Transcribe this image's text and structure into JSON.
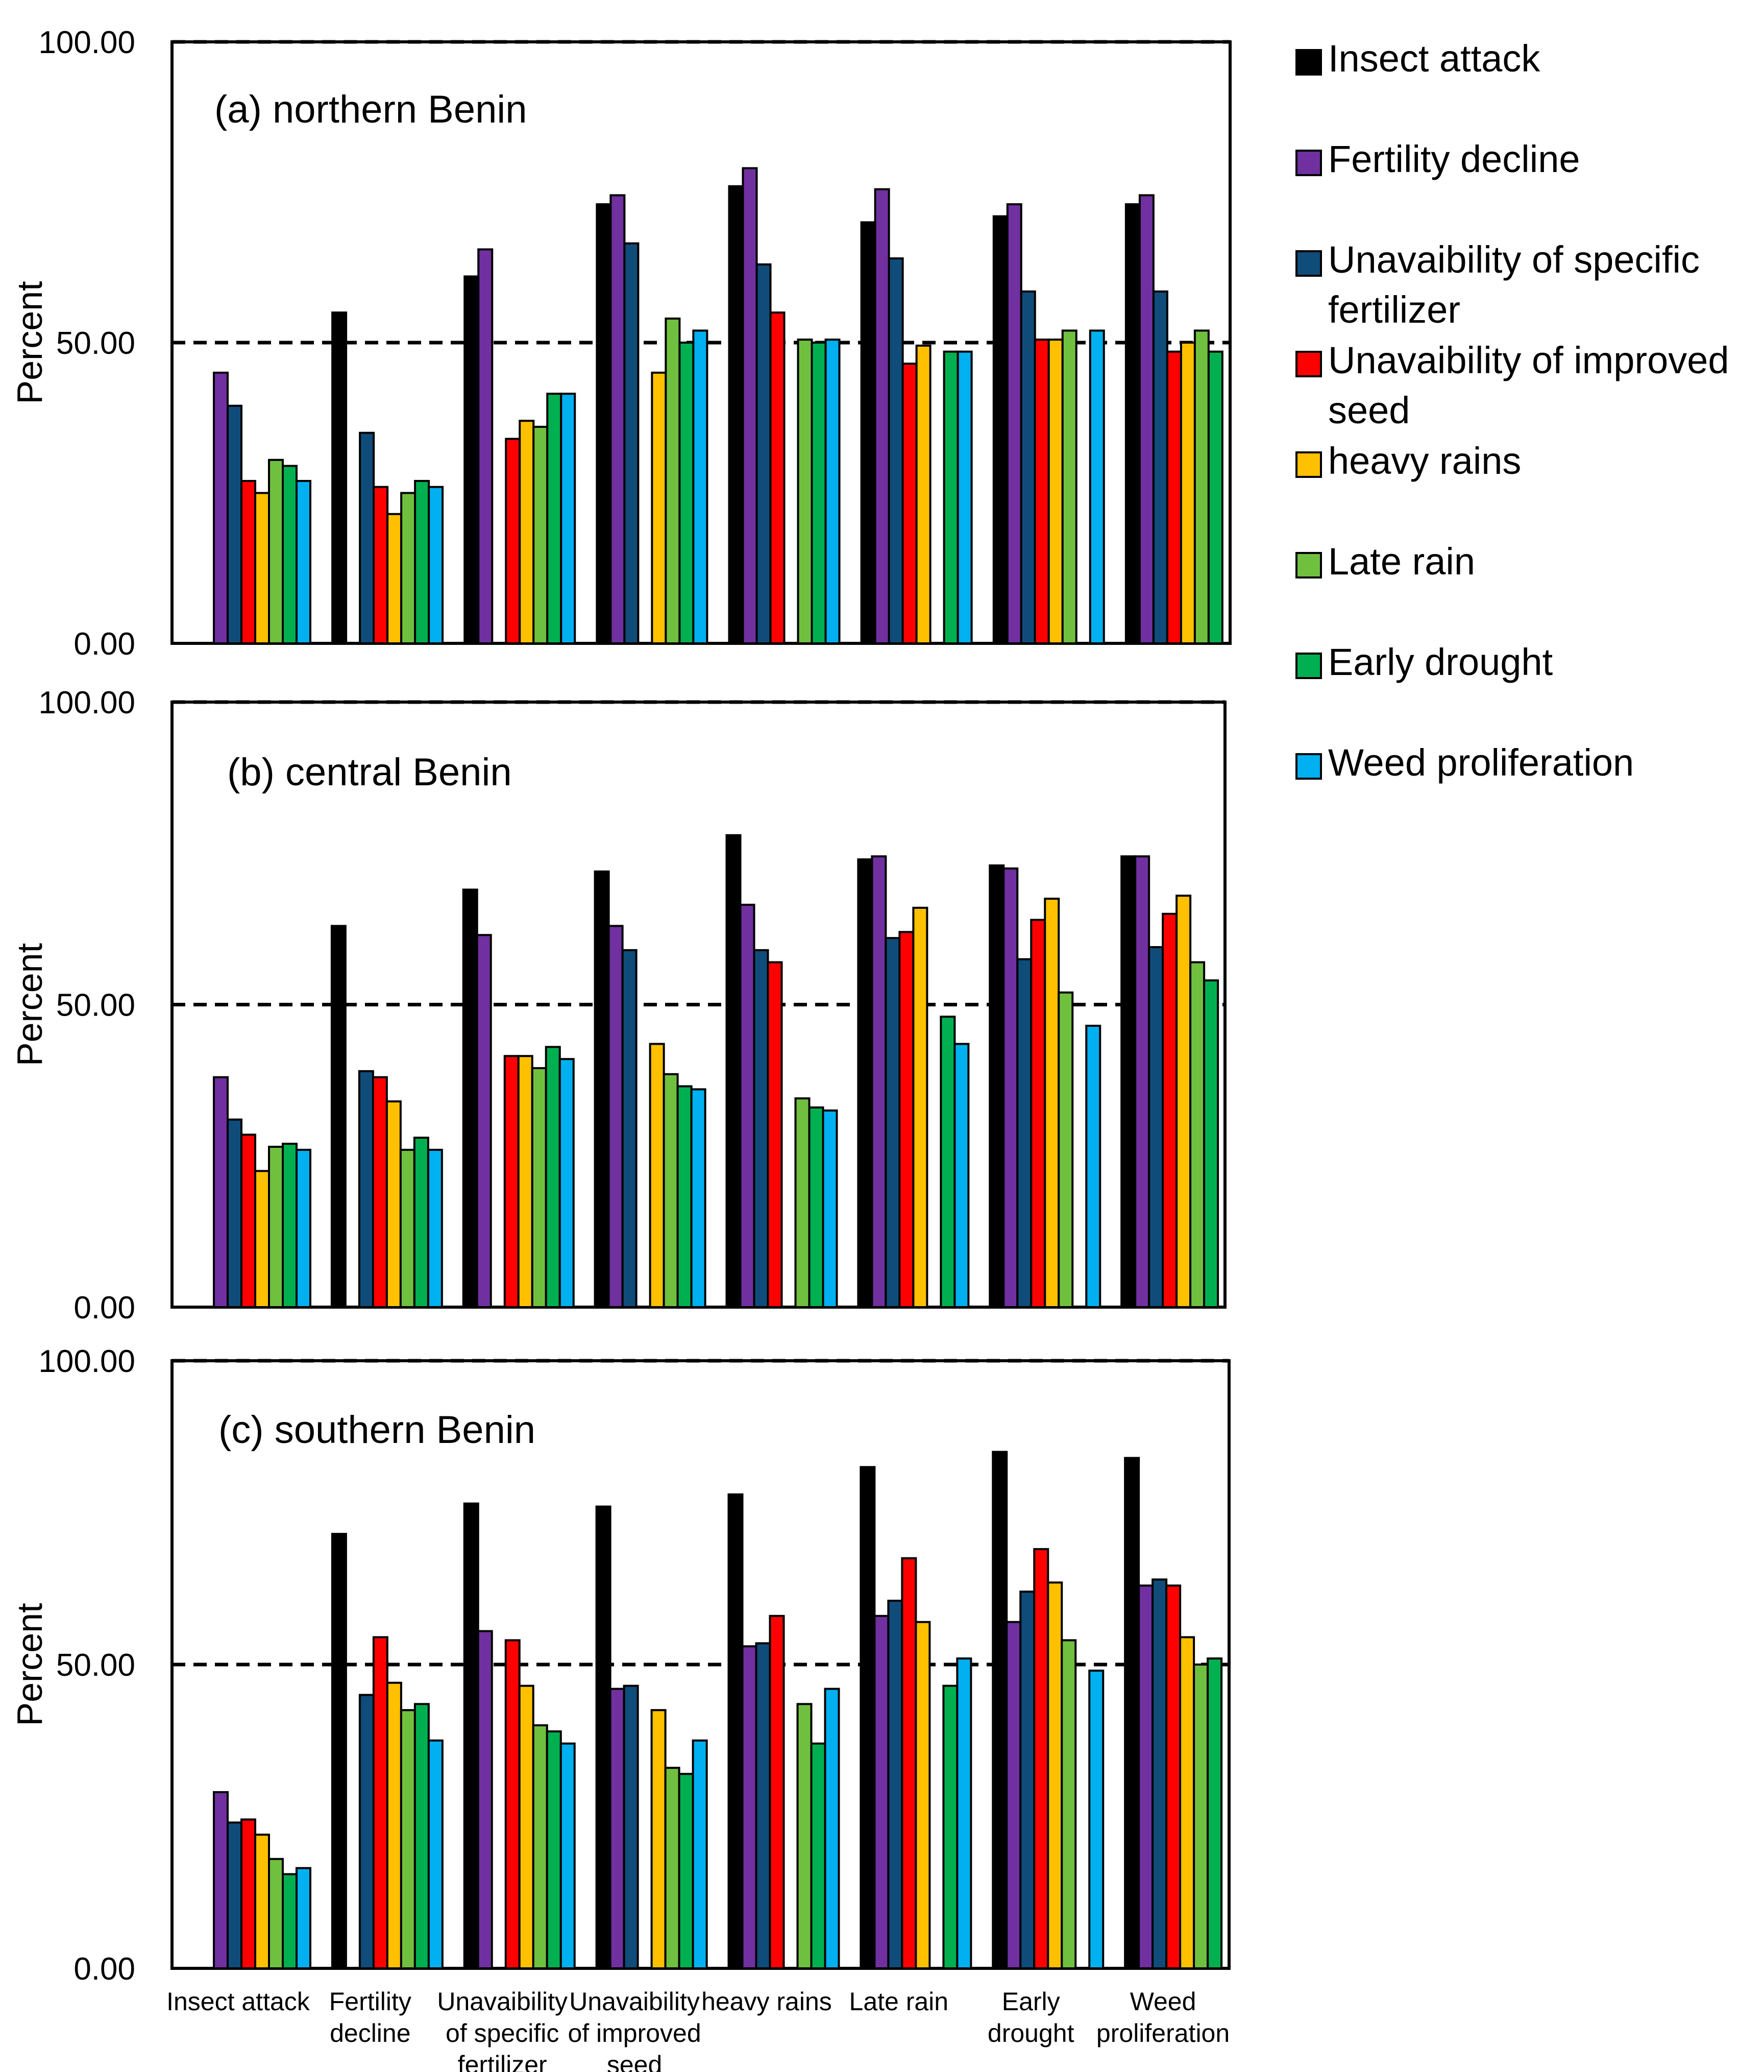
{
  "chart_data": [
    {
      "type": "bar",
      "panel_label": "(a)  northern Benin",
      "ylabel": "Percent",
      "ylim": [
        0,
        100
      ],
      "yticks": [
        "0.00",
        "50.00",
        "100.00"
      ],
      "reference_lines": [
        50,
        100
      ],
      "categories": [
        "Insect attack",
        "Fertility decline",
        "Unavaibility of specific fertilizer",
        "Unavaibility of improved seed",
        "heavy rains",
        "Late rain",
        "Early drought",
        "Weed proliferation"
      ],
      "series": [
        {
          "name": "Insect attack",
          "values": [
            null,
            55,
            61,
            73,
            76,
            70,
            71,
            73
          ]
        },
        {
          "name": "Fertility decline",
          "values": [
            45,
            null,
            65.5,
            74.5,
            79,
            75.5,
            73,
            74.5
          ]
        },
        {
          "name": "Unavaibility of specific fertilizer",
          "values": [
            39.5,
            35,
            null,
            66.5,
            63,
            64,
            58.5,
            58.5
          ]
        },
        {
          "name": "Unavaibility of improved seed",
          "values": [
            27,
            26,
            34,
            null,
            55,
            46.5,
            50.5,
            48.5
          ]
        },
        {
          "name": "heavy rains",
          "values": [
            25,
            21.5,
            37,
            45,
            null,
            49.5,
            50.5,
            50
          ]
        },
        {
          "name": "Late rain",
          "values": [
            30.5,
            25,
            36,
            54,
            50.5,
            null,
            52,
            52
          ]
        },
        {
          "name": "Early drought",
          "values": [
            29.5,
            27,
            41.5,
            50,
            50,
            48.5,
            null,
            48.5
          ]
        },
        {
          "name": "Weed proliferation",
          "values": [
            27,
            26,
            41.5,
            52,
            50.5,
            48.5,
            52,
            null
          ]
        }
      ]
    },
    {
      "type": "bar",
      "panel_label": "(b)   central Benin",
      "ylabel": "Percent",
      "ylim": [
        0,
        100
      ],
      "yticks": [
        "0.00",
        "50.00",
        "100.00"
      ],
      "reference_lines": [
        50,
        100
      ],
      "categories": [
        "Insect attack",
        "Fertility decline",
        "Unavaibility of specific fertilizer",
        "Unavaibility of improved seed",
        "heavy rains",
        "Late rain",
        "Early drought",
        "Weed proliferation"
      ],
      "series": [
        {
          "name": "Insect attack",
          "values": [
            null,
            63,
            69,
            72,
            78,
            74,
            73,
            74.5
          ]
        },
        {
          "name": "Fertility decline",
          "values": [
            38,
            null,
            61.5,
            63,
            66.5,
            74.5,
            72.5,
            74.5
          ]
        },
        {
          "name": "Unavaibility of specific fertilizer",
          "values": [
            31,
            39,
            null,
            59,
            59,
            61,
            57.5,
            59.5
          ]
        },
        {
          "name": "Unavaibility of improved seed",
          "values": [
            28.5,
            38,
            41.5,
            null,
            57,
            62,
            64,
            65
          ]
        },
        {
          "name": "heavy rains",
          "values": [
            22.5,
            34,
            41.5,
            43.5,
            null,
            66,
            67.5,
            68
          ]
        },
        {
          "name": "Late rain",
          "values": [
            26.5,
            26,
            39.5,
            38.5,
            34.5,
            null,
            52,
            57
          ]
        },
        {
          "name": "Early drought",
          "values": [
            27,
            28,
            43,
            36.5,
            33,
            48,
            null,
            54
          ]
        },
        {
          "name": "Weed proliferation",
          "values": [
            26,
            26,
            41,
            36,
            32.5,
            43.5,
            46.5,
            null
          ]
        }
      ]
    },
    {
      "type": "bar",
      "panel_label": "(c)  southern Benin",
      "ylabel": "Percent",
      "ylim": [
        0,
        100
      ],
      "yticks": [
        "0.00",
        "50.00",
        "100.00"
      ],
      "reference_lines": [
        50,
        100
      ],
      "categories": [
        "Insect attack",
        "Fertility decline",
        "Unavaibility of specific fertilizer",
        "Unavaibility of improved seed",
        "heavy rains",
        "Late rain",
        "Early drought",
        "Weed proliferation"
      ],
      "x_tick_labels": [
        [
          "Insect attack"
        ],
        [
          "Fertility",
          "decline"
        ],
        [
          "Unavaibility",
          "of specific",
          "fertilizer"
        ],
        [
          "Unavaibility",
          "of improved",
          "seed"
        ],
        [
          "heavy rains"
        ],
        [
          "Late rain"
        ],
        [
          "Early",
          "drought"
        ],
        [
          "Weed",
          "proliferation"
        ]
      ],
      "series": [
        {
          "name": "Insect attack",
          "values": [
            null,
            71.5,
            76.5,
            76,
            78,
            82.5,
            85,
            84
          ]
        },
        {
          "name": "Fertility decline",
          "values": [
            29,
            null,
            55.5,
            46,
            53,
            58,
            57,
            63
          ]
        },
        {
          "name": "Unavaibility of specific fertilizer",
          "values": [
            24,
            45,
            null,
            46.5,
            53.5,
            60.5,
            62,
            64
          ]
        },
        {
          "name": "Unavaibility of improved seed",
          "values": [
            24.5,
            54.5,
            54,
            null,
            58,
            67.5,
            69,
            63
          ]
        },
        {
          "name": "heavy rains",
          "values": [
            22,
            47,
            46.5,
            42.5,
            null,
            57,
            63.5,
            54.5
          ]
        },
        {
          "name": "Late rain",
          "values": [
            18,
            42.5,
            40,
            33,
            43.5,
            null,
            54,
            50
          ]
        },
        {
          "name": "Early drought",
          "values": [
            15.5,
            43.5,
            39,
            32,
            37,
            46.5,
            null,
            51
          ]
        },
        {
          "name": "Weed proliferation",
          "values": [
            16.5,
            37.5,
            37,
            37.5,
            46,
            51,
            49,
            null
          ]
        }
      ]
    }
  ],
  "legend": {
    "placement": "right",
    "items": [
      {
        "lines": [
          "Insect attack"
        ]
      },
      {
        "lines": [
          "Fertility decline"
        ]
      },
      {
        "lines": [
          "Unavaibility of specific",
          "fertilizer"
        ]
      },
      {
        "lines": [
          "Unavaibility of improved",
          "seed"
        ]
      },
      {
        "lines": [
          "heavy rains"
        ]
      },
      {
        "lines": [
          "Late rain"
        ]
      },
      {
        "lines": [
          "Early drought"
        ]
      },
      {
        "lines": [
          "Weed proliferation"
        ]
      }
    ]
  },
  "series_colors": [
    "#000000",
    "#7030a0",
    "#0f4c7a",
    "#ff0000",
    "#ffc000",
    "#70c040",
    "#00b050",
    "#00b0f0"
  ]
}
